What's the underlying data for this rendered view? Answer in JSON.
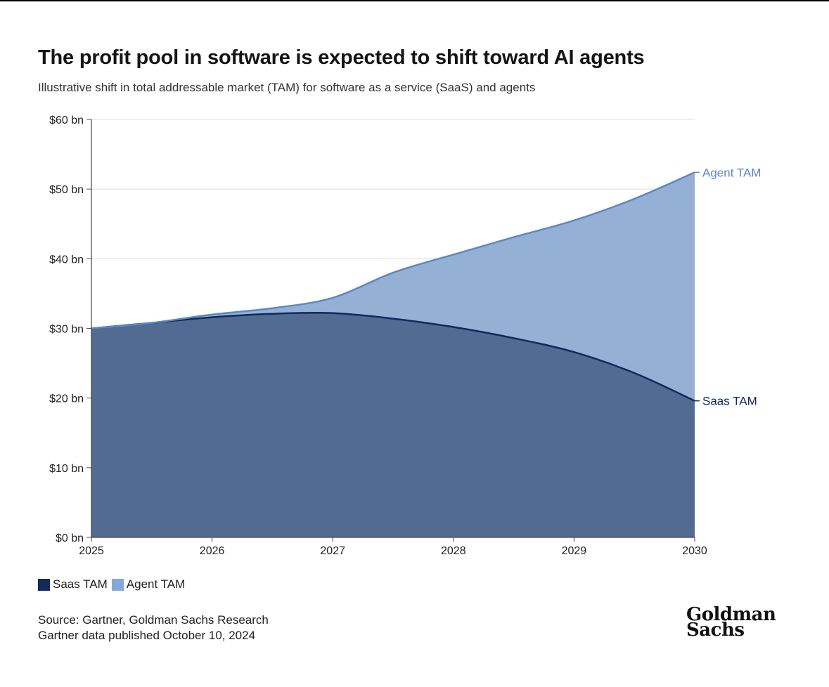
{
  "chart_data": {
    "type": "area",
    "stacked": true,
    "title": "The profit pool in software is expected to shift toward AI agents",
    "subtitle": "Illustrative shift in total addressable market (TAM) for software as a service (SaaS) and agents",
    "xlabel": "",
    "ylabel": "",
    "x": [
      2025,
      2025.5,
      2026,
      2026.5,
      2027,
      2027.5,
      2028,
      2028.5,
      2029,
      2029.5,
      2030
    ],
    "x_ticks": [
      "2025",
      "2026",
      "2027",
      "2028",
      "2029",
      "2030"
    ],
    "x_tick_values": [
      2025,
      2026,
      2027,
      2028,
      2029,
      2030
    ],
    "xlim": [
      2025,
      2030
    ],
    "ylim": [
      0,
      60
    ],
    "y_ticks": [
      "$0 bn",
      "$10 bn",
      "$20 bn",
      "$30 bn",
      "$40 bn",
      "$50 bn",
      "$60 bn"
    ],
    "y_tick_values": [
      0,
      10,
      20,
      30,
      40,
      50,
      60
    ],
    "grid": true,
    "legend_position": "bottom-left",
    "series": [
      {
        "name": "Saas TAM",
        "color": "#516b93",
        "line_color": "#12295a",
        "legend_color": "#12295a",
        "label_color": "#12295a",
        "label": "Saas TAM",
        "values": [
          30.0,
          30.8,
          31.6,
          32.1,
          32.2,
          31.4,
          30.2,
          28.6,
          26.6,
          23.6,
          19.6
        ]
      },
      {
        "name": "Agent TAM",
        "color": "#95b0d5",
        "line_color": "#5e87c3",
        "legend_color": "#86a8d8",
        "label_color": "#5e87c3",
        "label": "Agent TAM",
        "values": [
          0.0,
          0.0,
          0.4,
          0.8,
          2.2,
          6.6,
          10.4,
          14.5,
          18.9,
          25.0,
          32.8
        ]
      }
    ]
  },
  "legend": {
    "items": [
      {
        "label": "Saas TAM",
        "color": "#12295a"
      },
      {
        "label": "Agent TAM",
        "color": "#86a8d8"
      }
    ]
  },
  "footer": {
    "source_line1": "Source: Gartner, Goldman Sachs Research",
    "source_line2": "Gartner data published October 10, 2024",
    "logo_line1": "Goldman",
    "logo_line2": "Sachs"
  }
}
